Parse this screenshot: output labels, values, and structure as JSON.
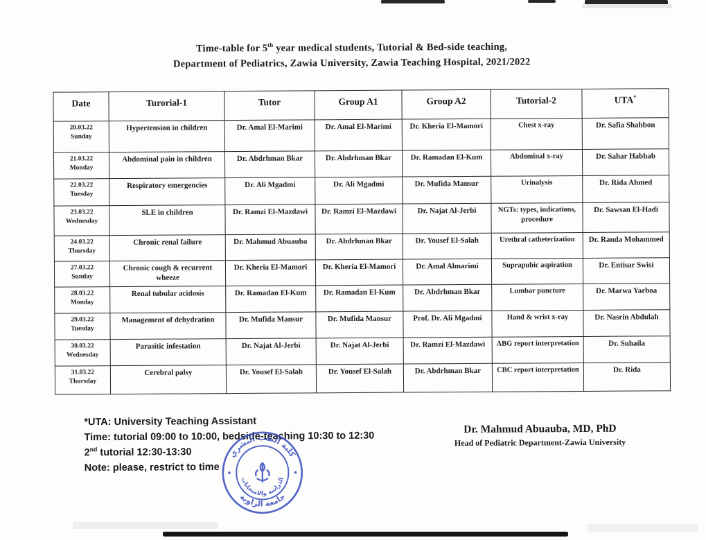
{
  "page": {
    "title_line1": {
      "pre": "Time-table for 5",
      "sup": "th",
      "post": " year medical students, Tutorial & Bed-side teaching,"
    },
    "title_line2": "Department of Pediatrics, Zawia University, Zawia Teaching Hospital, 2021/2022"
  },
  "table": {
    "headers": [
      {
        "label": "Date",
        "sup": ""
      },
      {
        "label": "Turorial-1",
        "sup": ""
      },
      {
        "label": "Tutor",
        "sup": ""
      },
      {
        "label": "Group A1",
        "sup": ""
      },
      {
        "label": "Group A2",
        "sup": ""
      },
      {
        "label": "Tutorial-2",
        "sup": ""
      },
      {
        "label": "UTA",
        "sup": "*"
      }
    ],
    "rows": [
      {
        "date": "20.03.22",
        "day": "Sunday",
        "tutorial1": "Hypertension in children",
        "tutor": "Dr. Amal El-Marimi",
        "groupA1": "Dr. Amal El-Marimi",
        "groupA2": "Dr. Kheria El-Mamori",
        "tutorial2": "Chest x-ray",
        "uta": "Dr. Safia Shahbon"
      },
      {
        "date": "21.03.22",
        "day": "Monday",
        "tutorial1": "Abdominal pain in children",
        "tutor": "Dr. Abdrhman Bkar",
        "groupA1": "Dr. Abdrhman Bkar",
        "groupA2": "Dr. Ramadan El-Kum",
        "tutorial2": "Abdominal x-ray",
        "uta": "Dr. Sahar Habhab"
      },
      {
        "date": "22.03.22",
        "day": "Tuesday",
        "tutorial1": "Respiratory emergencies",
        "tutor": "Dr. Ali Mgadmi",
        "groupA1": "Dr. Ali Mgadmi",
        "groupA2": "Dr. Mufida Mansur",
        "tutorial2": "Urinalysis",
        "uta": "Dr. Rida Ahmed"
      },
      {
        "date": "23.03.22",
        "day": "Wednesday",
        "tutorial1": "SLE in children",
        "tutor": "Dr. Ramzi El-Mazdawi",
        "groupA1": "Dr. Ramzi El-Mazdawi",
        "groupA2": "Dr. Najat Al-Jerbi",
        "tutorial2": "NGTs: types, indications, procedure",
        "uta": "Dr. Sawsan El-Hadi"
      },
      {
        "date": "24.03.22",
        "day": "Thursday",
        "tutorial1": "Chronic renal failure",
        "tutor": "Dr. Mahmud Abuauba",
        "groupA1": "Dr. Abdrhman Bkar",
        "groupA2": "Dr. Yousef El-Salah",
        "tutorial2": "Urethral catheterization",
        "uta": "Dr. Randa Mohammed"
      },
      {
        "date": "27.03.22",
        "day": "Sunday",
        "tutorial1": "Chronic cough & recurrent wheeze",
        "tutor": "Dr. Kheria El-Mamori",
        "groupA1": "Dr. Kheria El-Mamori",
        "groupA2": "Dr. Amal Almarimi",
        "tutorial2": "Suprapubic aspiration",
        "uta": "Dr. Entisar Swisi"
      },
      {
        "date": "28.03.22",
        "day": "Monday",
        "tutorial1": "Renal tubular acidosis",
        "tutor": "Dr. Ramadan El-Kum",
        "groupA1": "Dr. Ramadan El-Kum",
        "groupA2": "Dr. Abdrhman Bkar",
        "tutorial2": "Lumbar puncture",
        "uta": "Dr. Marwa Yarboa"
      },
      {
        "date": "29.03.22",
        "day": "Tuesday",
        "tutorial1": "Management of dehydration",
        "tutor": "Dr. Mufida Mansur",
        "groupA1": "Dr. Mufida Mansur",
        "groupA2": "Prof. Dr. Ali Mgadmi",
        "tutorial2": "Hand & wrist x-ray",
        "uta": "Dr. Nasrin Abdulah"
      },
      {
        "date": "30.03.22",
        "day": "Wednesday",
        "tutorial1": "Parasitic infestation",
        "tutor": "Dr. Najat Al-Jerbi",
        "groupA1": "Dr. Najat Al-Jerbi",
        "groupA2": "Dr. Ramzi El-Mazdawi",
        "tutorial2": "ABG report interpretation",
        "uta": "Dr. Suhaila"
      },
      {
        "date": "31.03.22",
        "day": "Thursday",
        "tutorial1": "Cerebral palsy",
        "tutor": "Dr. Yousef El-Salah",
        "groupA1": "Dr. Yousef El-Salah",
        "groupA2": "Dr. Abdrhman Bkar",
        "tutorial2": "CBC report interpretation",
        "uta": "Dr. Rida"
      }
    ]
  },
  "footer": {
    "notes": [
      {
        "pre": "*UTA: University Teaching Assistant",
        "sup": "",
        "post": ""
      },
      {
        "pre": "Time: tutorial 09:00 to 10:00, bedside-teaching 10:30 to 12:30",
        "sup": "",
        "post": ""
      },
      {
        "pre": "2",
        "sup": "nd",
        "post": " tutorial 12:30-13:30"
      },
      {
        "pre": "Note: please, restrict to time",
        "sup": "",
        "post": ""
      }
    ],
    "signature": {
      "name": "Dr. Mahmud Abuauba, MD, PhD",
      "role": "Head of Pediatric Department-Zawia University"
    },
    "stamp": {
      "color": "#3c4fbe",
      "outer_text_top": "كلية الطب البشري",
      "outer_text_bottom": "جامعة الزاوية",
      "inner_text": "الدراسة والامتحانات"
    }
  }
}
